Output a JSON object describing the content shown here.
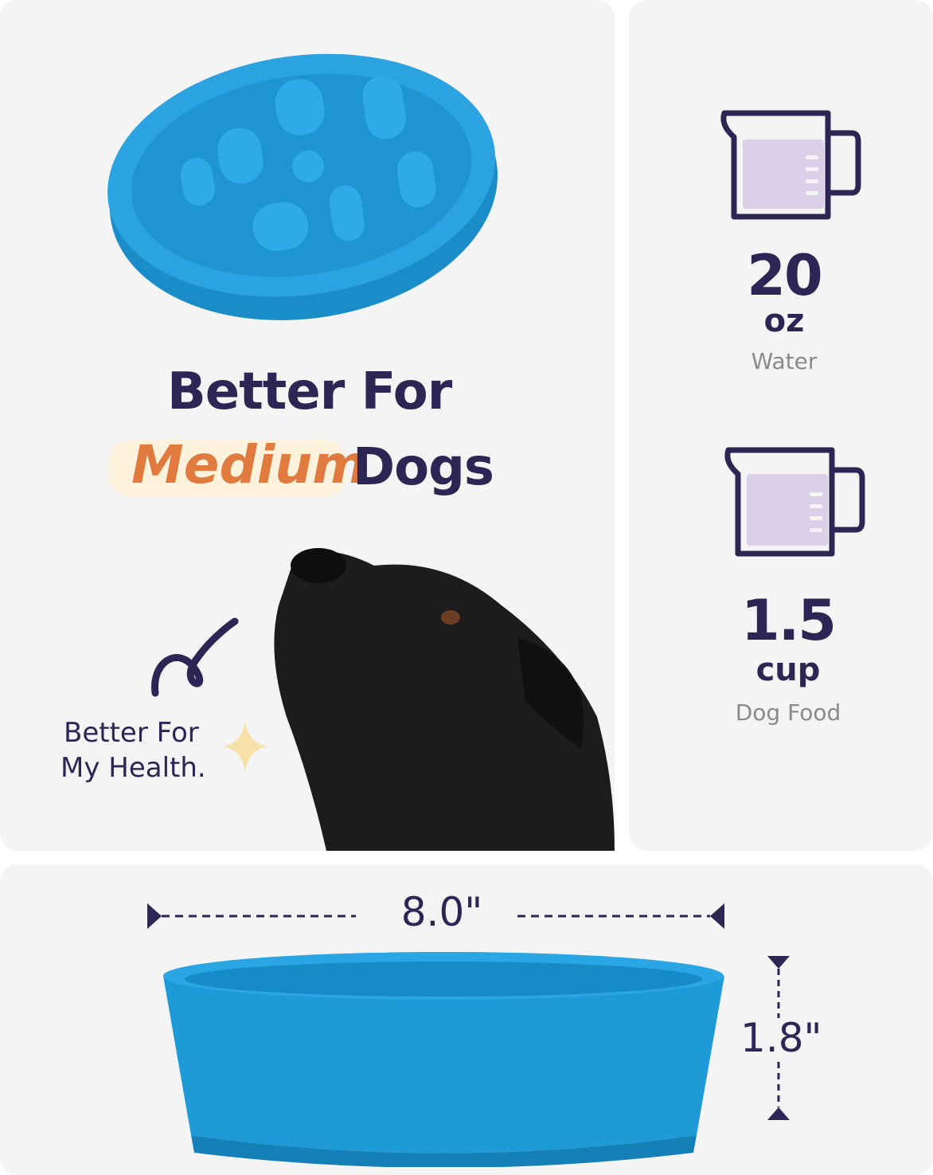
{
  "headline": {
    "line1": "Better For",
    "highlight": "Medium",
    "line2_rest": "Dogs"
  },
  "note": {
    "line1": "Better For",
    "line2": "My Health."
  },
  "capacity": [
    {
      "value": "20",
      "unit": "oz",
      "label": "Water"
    },
    {
      "value": "1.5",
      "unit": "cup",
      "label": "Dog Food"
    }
  ],
  "dimensions": {
    "width": "8.0\"",
    "height": "1.8\""
  },
  "colors": {
    "text": "#2b2654",
    "highlight_text": "#e07a3f",
    "highlight_bg": "#fdf3dc",
    "bowl": "#1e9ad6",
    "cup_fill": "#d9d0e8"
  }
}
